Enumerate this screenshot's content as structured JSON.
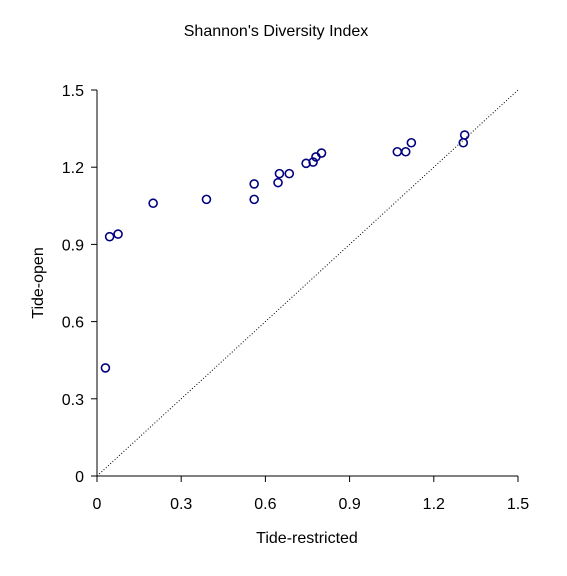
{
  "chart_data": {
    "type": "scatter",
    "title": "Shannon's Diversity Index",
    "xlabel": "Tide-restricted",
    "ylabel": "Tide-open",
    "xlim": [
      0,
      1.5
    ],
    "ylim": [
      0,
      1.5
    ],
    "xticks": [
      "0",
      "0.3",
      "0.6",
      "0.9",
      "1.2",
      "1.5"
    ],
    "yticks": [
      "0",
      "0.3",
      "0.6",
      "0.9",
      "1.2",
      "1.5"
    ],
    "xtick_values": [
      0,
      0.3,
      0.6,
      0.9,
      1.2,
      1.5
    ],
    "ytick_values": [
      0,
      0.3,
      0.6,
      0.9,
      1.2,
      1.5
    ],
    "grid": false,
    "reference_line": {
      "type": "1:1",
      "style": "dotted"
    },
    "series": [
      {
        "marker": "open-circle",
        "color": "#000080",
        "points": [
          {
            "x": 0.03,
            "y": 0.42
          },
          {
            "x": 0.045,
            "y": 0.93
          },
          {
            "x": 0.075,
            "y": 0.94
          },
          {
            "x": 0.2,
            "y": 1.06
          },
          {
            "x": 0.39,
            "y": 1.075
          },
          {
            "x": 0.56,
            "y": 1.075
          },
          {
            "x": 0.56,
            "y": 1.135
          },
          {
            "x": 0.645,
            "y": 1.14
          },
          {
            "x": 0.65,
            "y": 1.175
          },
          {
            "x": 0.685,
            "y": 1.175
          },
          {
            "x": 0.745,
            "y": 1.215
          },
          {
            "x": 0.77,
            "y": 1.22
          },
          {
            "x": 0.78,
            "y": 1.24
          },
          {
            "x": 0.8,
            "y": 1.255
          },
          {
            "x": 1.07,
            "y": 1.26
          },
          {
            "x": 1.1,
            "y": 1.26
          },
          {
            "x": 1.12,
            "y": 1.295
          },
          {
            "x": 1.305,
            "y": 1.295
          },
          {
            "x": 1.31,
            "y": 1.325
          }
        ]
      }
    ]
  }
}
